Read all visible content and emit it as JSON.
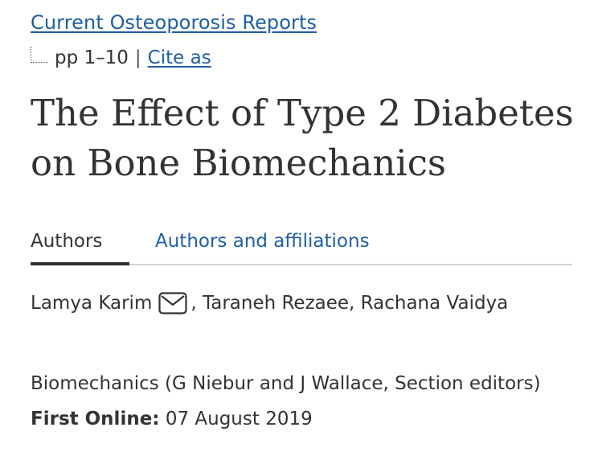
{
  "journal": {
    "name": "Current Osteoporosis Reports"
  },
  "meta": {
    "pages": "pp 1–10",
    "separator": "|",
    "cite_label": "Cite as"
  },
  "article": {
    "title": "The Effect of Type 2 Diabetes on Bone Biomechanics"
  },
  "tabs": [
    {
      "label": "Authors",
      "active": true
    },
    {
      "label": "Authors and affiliations",
      "active": false
    }
  ],
  "authors": {
    "first": "Lamya Karim",
    "rest": ", Taraneh Rezaee, Rachana Vaidya",
    "email_icon": "envelope-icon"
  },
  "section": {
    "text": "Biomechanics (G Niebur and J Wallace, Section editors)"
  },
  "online": {
    "label": "First Online:",
    "date": "07 August 2019"
  },
  "colors": {
    "link": "#1f5fa3",
    "text": "#333333",
    "divider": "#d4d4d4"
  }
}
